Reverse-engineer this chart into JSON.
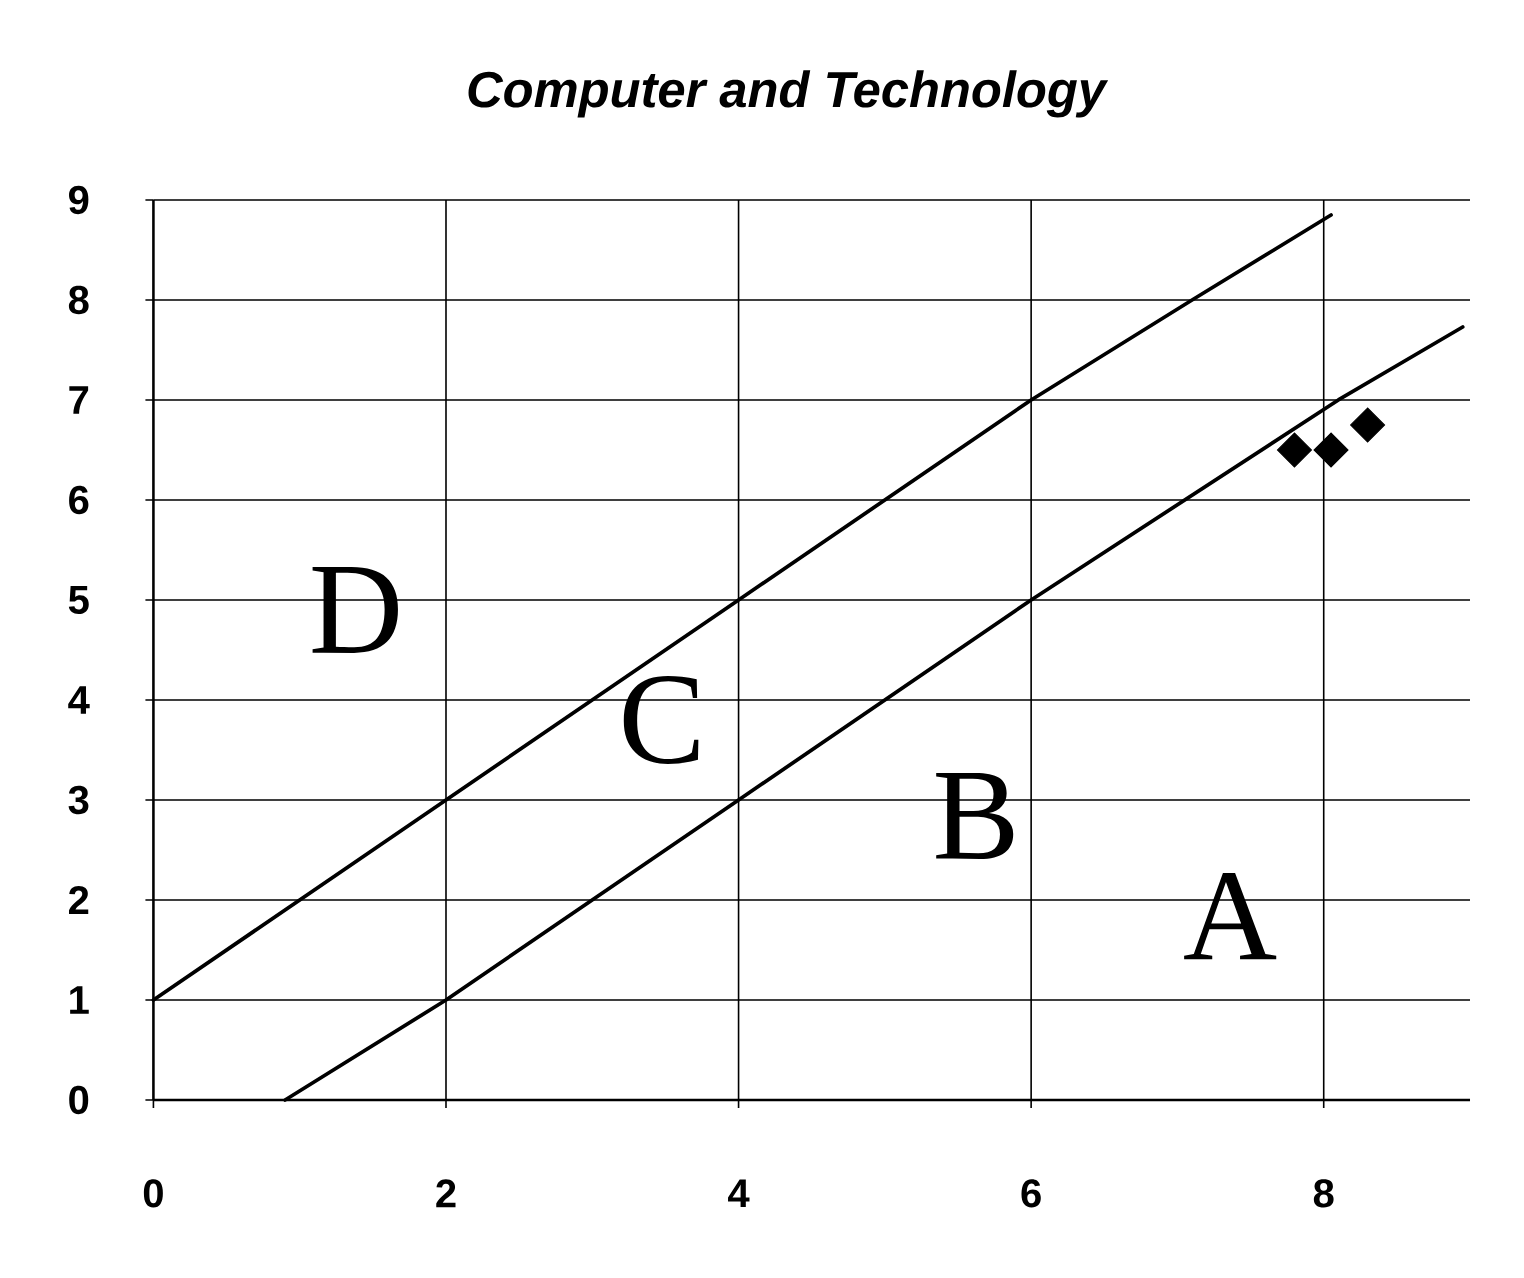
{
  "chart_data": {
    "type": "scatter",
    "title": "Computer and Technology",
    "series": [
      {
        "type": "line",
        "color": "#000000",
        "x": [
          0,
          2,
          4,
          6,
          7.1,
          8.05
        ],
        "values": [
          1,
          3,
          5,
          7,
          8,
          8.85
        ]
      },
      {
        "type": "line",
        "color": "#000000",
        "x": [
          0.9,
          2,
          4,
          6,
          8.1,
          8.95
        ],
        "values": [
          0,
          1,
          3,
          5,
          7,
          7.73
        ]
      },
      {
        "color": "#000000",
        "marker": "diamond",
        "x": [
          7.8,
          8.05,
          8.3
        ],
        "values": [
          6.5,
          6.5,
          6.75
        ]
      }
    ],
    "xlim": [
      0,
      9
    ],
    "ylim": [
      0,
      9
    ],
    "xticks": [
      0,
      2,
      4,
      6,
      8
    ],
    "yticks": [
      0,
      1,
      2,
      3,
      4,
      5,
      6,
      7,
      8,
      9
    ],
    "grid": true,
    "annotations": [
      "A",
      "B",
      "C",
      "D"
    ]
  }
}
